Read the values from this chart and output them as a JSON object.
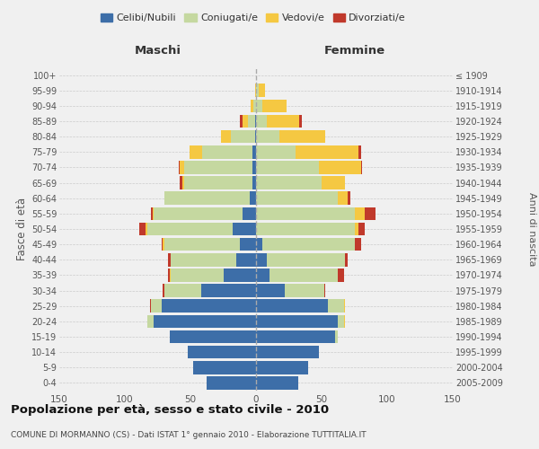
{
  "age_groups": [
    "0-4",
    "5-9",
    "10-14",
    "15-19",
    "20-24",
    "25-29",
    "30-34",
    "35-39",
    "40-44",
    "45-49",
    "50-54",
    "55-59",
    "60-64",
    "65-69",
    "70-74",
    "75-79",
    "80-84",
    "85-89",
    "90-94",
    "95-99",
    "100+"
  ],
  "birth_years": [
    "2005-2009",
    "2000-2004",
    "1995-1999",
    "1990-1994",
    "1985-1989",
    "1980-1984",
    "1975-1979",
    "1970-1974",
    "1965-1969",
    "1960-1964",
    "1955-1959",
    "1950-1954",
    "1945-1949",
    "1940-1944",
    "1935-1939",
    "1930-1934",
    "1925-1929",
    "1920-1924",
    "1915-1919",
    "1910-1914",
    "≤ 1909"
  ],
  "maschi_celibi": [
    38,
    48,
    52,
    66,
    78,
    72,
    42,
    25,
    15,
    12,
    18,
    10,
    5,
    3,
    3,
    3,
    1,
    1,
    0,
    0,
    0
  ],
  "maschi_coniugati": [
    0,
    0,
    0,
    0,
    5,
    8,
    28,
    40,
    50,
    58,
    65,
    68,
    65,
    52,
    52,
    38,
    18,
    5,
    2,
    0,
    0
  ],
  "maschi_vedovi": [
    0,
    0,
    0,
    0,
    0,
    0,
    0,
    1,
    0,
    1,
    1,
    1,
    0,
    1,
    3,
    10,
    8,
    4,
    2,
    1,
    0
  ],
  "maschi_divorziati": [
    0,
    0,
    0,
    0,
    0,
    1,
    1,
    1,
    2,
    1,
    5,
    1,
    0,
    2,
    1,
    0,
    0,
    2,
    0,
    0,
    0
  ],
  "femmine_celibi": [
    32,
    40,
    48,
    60,
    62,
    55,
    22,
    10,
    8,
    5,
    0,
    0,
    0,
    0,
    0,
    0,
    0,
    0,
    0,
    0,
    0
  ],
  "femmine_coniugati": [
    0,
    0,
    0,
    2,
    5,
    12,
    30,
    52,
    60,
    70,
    75,
    75,
    62,
    50,
    48,
    30,
    18,
    8,
    5,
    2,
    0
  ],
  "femmine_vedovi": [
    0,
    0,
    0,
    0,
    1,
    1,
    0,
    0,
    0,
    0,
    3,
    8,
    8,
    18,
    32,
    48,
    35,
    25,
    18,
    5,
    0
  ],
  "femmine_divorziati": [
    0,
    0,
    0,
    0,
    0,
    0,
    1,
    5,
    2,
    5,
    5,
    8,
    2,
    0,
    1,
    2,
    0,
    2,
    0,
    0,
    0
  ],
  "colors": {
    "celibi": "#3d6ea8",
    "coniugati": "#c5d8a0",
    "vedovi": "#f5c842",
    "divorziati": "#c0392b"
  },
  "xlim": 150,
  "title": "Popolazione per età, sesso e stato civile - 2010",
  "subtitle": "COMUNE DI MORMANNO (CS) - Dati ISTAT 1° gennaio 2010 - Elaborazione TUTTITALIA.IT",
  "ylabel_left": "Fasce di età",
  "ylabel_right": "Anni di nascita",
  "xlabel_maschi": "Maschi",
  "xlabel_femmine": "Femmine",
  "bg_color": "#f0f0f0",
  "bar_height": 0.85
}
